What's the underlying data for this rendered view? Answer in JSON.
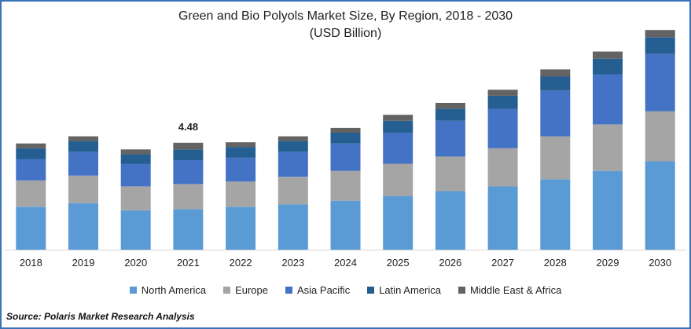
{
  "chart_data": {
    "type": "bar",
    "stacked": true,
    "title": "Green and Bio Polyols Market Size, By Region, 2018 - 2030",
    "subtitle": "(USD Billion)",
    "categories": [
      "2018",
      "2019",
      "2020",
      "2021",
      "2022",
      "2023",
      "2024",
      "2025",
      "2026",
      "2027",
      "2028",
      "2029",
      "2030"
    ],
    "series": [
      {
        "name": "North America",
        "color": "#5b9bd5",
        "values": [
          1.8,
          1.95,
          1.65,
          1.7,
          1.8,
          1.9,
          2.05,
          2.25,
          2.45,
          2.65,
          2.95,
          3.3,
          3.7
        ]
      },
      {
        "name": "Europe",
        "color": "#a5a5a5",
        "values": [
          1.1,
          1.15,
          1.0,
          1.05,
          1.05,
          1.15,
          1.25,
          1.35,
          1.45,
          1.6,
          1.8,
          1.95,
          2.1
        ]
      },
      {
        "name": "Asia Pacific",
        "color": "#4472c4",
        "values": [
          0.9,
          1.0,
          0.95,
          1.0,
          1.0,
          1.05,
          1.15,
          1.3,
          1.5,
          1.65,
          1.9,
          2.1,
          2.4
        ]
      },
      {
        "name": "Latin America",
        "color": "#255e91",
        "values": [
          0.45,
          0.45,
          0.4,
          0.45,
          0.45,
          0.45,
          0.45,
          0.5,
          0.5,
          0.55,
          0.6,
          0.65,
          0.7
        ]
      },
      {
        "name": "Middle East & Africa",
        "color": "#636363",
        "values": [
          0.2,
          0.2,
          0.2,
          0.28,
          0.2,
          0.2,
          0.2,
          0.25,
          0.25,
          0.25,
          0.3,
          0.3,
          0.3
        ]
      }
    ],
    "annotations": [
      {
        "category": "2021",
        "text": "4.48"
      }
    ],
    "ylim": [
      0,
      9.8
    ],
    "grid": false,
    "legend": "bottom"
  },
  "source": "Source: Polaris  Market Research Analysis"
}
